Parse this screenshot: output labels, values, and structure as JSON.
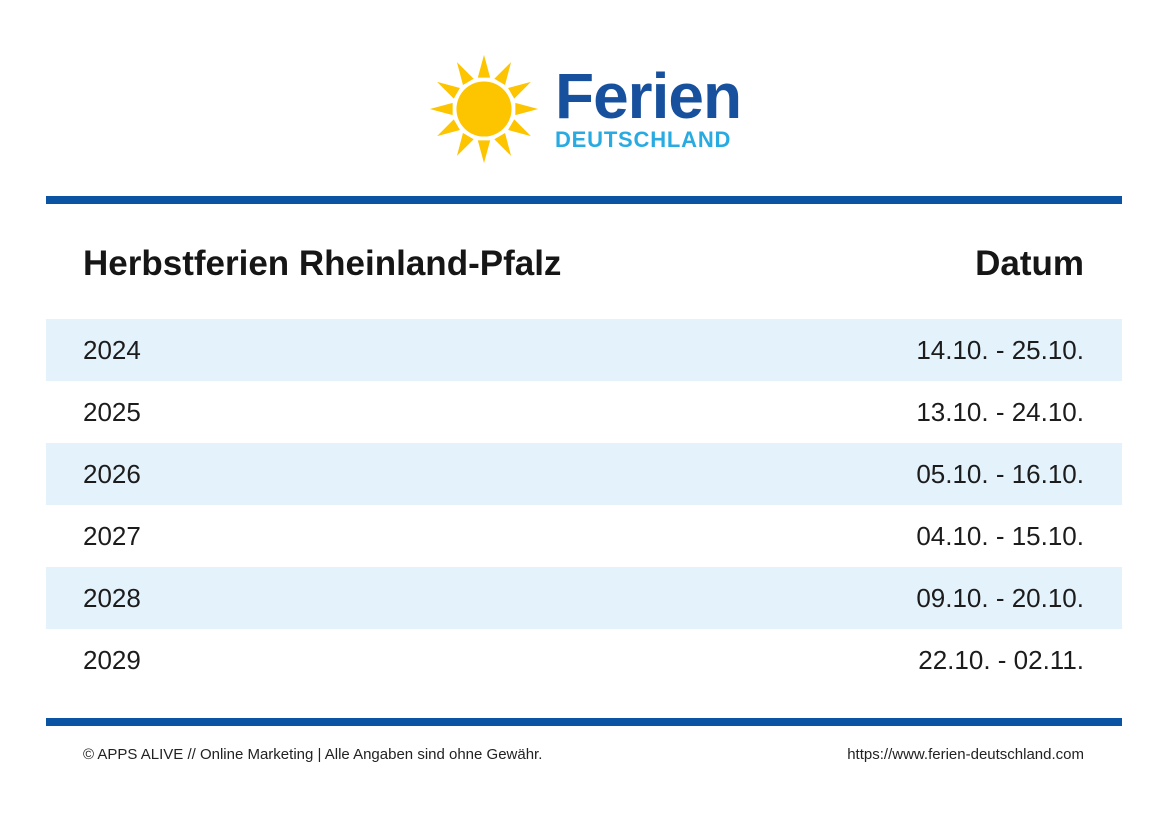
{
  "logo": {
    "brand": "Ferien",
    "brand_sub": "DEUTSCHLAND",
    "colors": {
      "sun": "#fdc400",
      "brand_blue": "#17519e",
      "brand_cyan": "#29abe2"
    }
  },
  "table": {
    "title": "Herbstferien Rheinland-Pfalz",
    "date_header": "Datum",
    "rows": [
      {
        "year": "2024",
        "date": "14.10. - 25.10."
      },
      {
        "year": "2025",
        "date": "13.10. - 24.10."
      },
      {
        "year": "2026",
        "date": "05.10. - 16.10."
      },
      {
        "year": "2027",
        "date": "04.10. - 15.10."
      },
      {
        "year": "2028",
        "date": "09.10. - 20.10."
      },
      {
        "year": "2029",
        "date": "22.10. - 02.11."
      }
    ],
    "colors": {
      "divider_blue": "#0b54a3",
      "row_stripe": "#e4f2fc"
    }
  },
  "footer": {
    "copyright": "© APPS ALIVE // Online Marketing | Alle Angaben sind ohne Gewähr.",
    "url": "https://www.ferien-deutschland.com"
  }
}
